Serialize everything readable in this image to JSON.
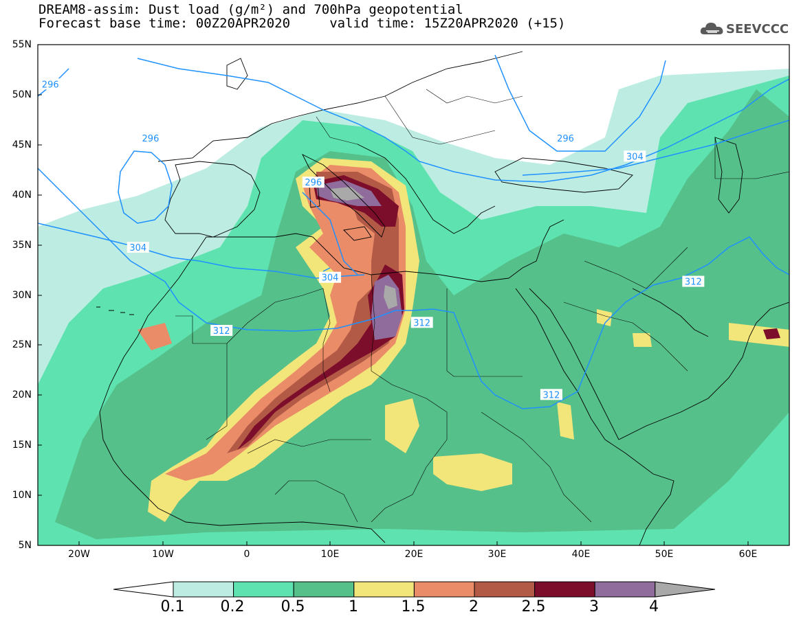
{
  "title_line1": "DREAM8-assim: Dust load (g/m²) and 700hPa geopotential",
  "title_line2": "Forecast base time: 00Z20APR2020     valid time: 15Z20APR2020 (+15)",
  "logo": {
    "text": "SEEVCCC",
    "icon": "cloud-icon",
    "color": "#555555"
  },
  "map": {
    "lat_labels": [
      "55N",
      "50N",
      "45N",
      "40N",
      "35N",
      "30N",
      "25N",
      "20N",
      "15N",
      "10N",
      "5N"
    ],
    "lon_labels": [
      "20W",
      "10W",
      "0",
      "10E",
      "20E",
      "30E",
      "40E",
      "50E",
      "60E"
    ],
    "lon_range": [
      -25,
      65
    ],
    "lat_range": [
      5,
      55
    ],
    "contour_labels": [
      {
        "value": "296",
        "lon": -23.5,
        "lat": 51.0
      },
      {
        "value": "296",
        "lon": -11.5,
        "lat": 45.6
      },
      {
        "value": "296",
        "lon": 8.0,
        "lat": 41.2
      },
      {
        "value": "296",
        "lon": 38.2,
        "lat": 45.6
      },
      {
        "value": "304",
        "lon": -13.0,
        "lat": 34.7
      },
      {
        "value": "304",
        "lon": 10.0,
        "lat": 31.7
      },
      {
        "value": "304",
        "lon": 46.5,
        "lat": 43.8
      },
      {
        "value": "312",
        "lon": -3.0,
        "lat": 26.4
      },
      {
        "value": "312",
        "lon": 21.0,
        "lat": 27.2
      },
      {
        "value": "312",
        "lon": 53.5,
        "lat": 31.3
      },
      {
        "value": "312",
        "lon": 36.5,
        "lat": 20.0
      }
    ]
  },
  "colorbar": {
    "labels": [
      "0.1",
      "0.2",
      "0.5",
      "1",
      "1.5",
      "2",
      "2.5",
      "3",
      "4"
    ],
    "colors": [
      "#ffffff",
      "#bdede2",
      "#5ee3b0",
      "#56c08b",
      "#f2e57a",
      "#ea8c68",
      "#b35a47",
      "#7d0e2b",
      "#8f6c9c",
      "#a9a9a9"
    ]
  }
}
